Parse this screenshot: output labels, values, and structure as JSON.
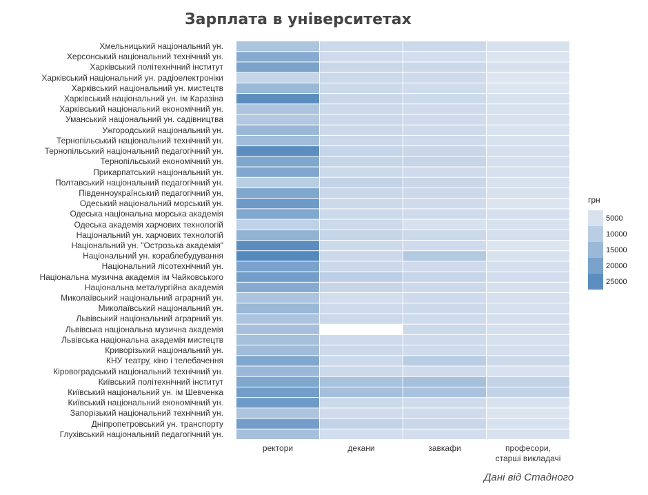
{
  "chart_data": {
    "type": "heatmap",
    "title": "Зарплата в університетах",
    "columns": [
      "ректори",
      "декани",
      "завкафи",
      "професори,\nстарші викладачі"
    ],
    "rows": [
      "Хмельницький національний ун.",
      "Херсонський національний технічний ун.",
      "Харківський політехнічний інститут",
      "Харківський національний ун. радіоелектроніки",
      "Харківський національний ун. мистецтв",
      "Харківський національний ун. ім Каразіна",
      "Харківський національний економічний ун.",
      "Уманський національний ун. садівництва",
      "Ужгородський національний ун.",
      "Тернопільський національний технічний ун.",
      "Тернопільський національний педагогічний ун.",
      "Тернопільський економічний ун.",
      "Прикарпатський національний ун.",
      "Полтавський національний педагогічний ун.",
      "Південноукраїнський педагогічний ун.",
      "Одеський національний морський ун.",
      "Одеська національна морська академія",
      "Одеська академія харчових технологій",
      "Національний ун. харчових технологій",
      "Національний ун. \"Острозька академія\"",
      "Національний ун. кораблебудування",
      "Національний лісотехнічний ун.",
      "Національна музична академія ім Чайковського",
      "Національна металургійна академія",
      "Миколаївський національний аграрний ун.",
      "Миколаївський національний ун.",
      "Львівський національний аграрний ун.",
      "Львівська національна музична академія",
      "Львівська національна академія мистецтв",
      "Криворізький національний ун.",
      "КНУ театру, кіно і телебачення",
      "Кіровоградський національний технічний ун.",
      "Київський політехнічний інститут",
      "Київський національний ун. ім Шевченка",
      "Київський національний економічний ун.",
      "Запорізький національний технічний ун.",
      "Дніпропетровський ун. транспорту",
      "Глухівський національний педагогічний ун."
    ],
    "values": [
      [
        12000,
        7000,
        7000,
        5000
      ],
      [
        18000,
        6500,
        6000,
        4500
      ],
      [
        20000,
        7500,
        7000,
        5000
      ],
      [
        8000,
        7000,
        6500,
        4000
      ],
      [
        15000,
        7000,
        6500,
        4500
      ],
      [
        25000,
        7500,
        7000,
        5000
      ],
      [
        12000,
        7000,
        6500,
        5000
      ],
      [
        11000,
        7000,
        6500,
        5000
      ],
      [
        15000,
        7000,
        6500,
        5000
      ],
      [
        14000,
        7000,
        6500,
        5000
      ],
      [
        25000,
        8000,
        7500,
        5500
      ],
      [
        19000,
        8000,
        8000,
        5500
      ],
      [
        19000,
        7000,
        6500,
        5500
      ],
      [
        10000,
        8500,
        7500,
        5000
      ],
      [
        19000,
        7500,
        7000,
        5000
      ],
      [
        22000,
        7000,
        6500,
        4500
      ],
      [
        19000,
        7000,
        6500,
        5500
      ],
      [
        9000,
        7000,
        5000,
        5000
      ],
      [
        16000,
        8000,
        7000,
        5500
      ],
      [
        25000,
        7000,
        6500,
        4500
      ],
      [
        26000,
        7000,
        11000,
        5000
      ],
      [
        20000,
        7000,
        6500,
        5500
      ],
      [
        21000,
        9500,
        8000,
        6000
      ],
      [
        18000,
        8000,
        7000,
        5500
      ],
      [
        12000,
        6000,
        6500,
        5500
      ],
      [
        15000,
        6500,
        7000,
        5500
      ],
      [
        12000,
        7000,
        6500,
        5500
      ],
      [
        13000,
        null,
        7000,
        5500
      ],
      [
        13000,
        6500,
        6500,
        5500
      ],
      [
        14000,
        7000,
        6500,
        5500
      ],
      [
        19000,
        7000,
        10000,
        7000
      ],
      [
        15000,
        7000,
        6500,
        5000
      ],
      [
        19000,
        12500,
        13000,
        8500
      ],
      [
        21000,
        13000,
        12500,
        8500
      ],
      [
        22000,
        7000,
        6500,
        5000
      ],
      [
        12000,
        6500,
        6500,
        4500
      ],
      [
        21000,
        8500,
        7500,
        5000
      ],
      [
        13000,
        6000,
        6000,
        5000
      ]
    ],
    "legend": {
      "title": "грн",
      "values": [
        5000,
        10000,
        15000,
        20000,
        25000
      ],
      "labels": [
        "5000",
        "10000",
        "15000",
        "20000",
        "25000"
      ]
    },
    "colors": {
      "low": "#e5eaf4",
      "high": "#4e85ba",
      "missing": "#ffffff"
    },
    "scale_range": [
      3000,
      27000
    ]
  },
  "source_note": "Дані від Стадного"
}
